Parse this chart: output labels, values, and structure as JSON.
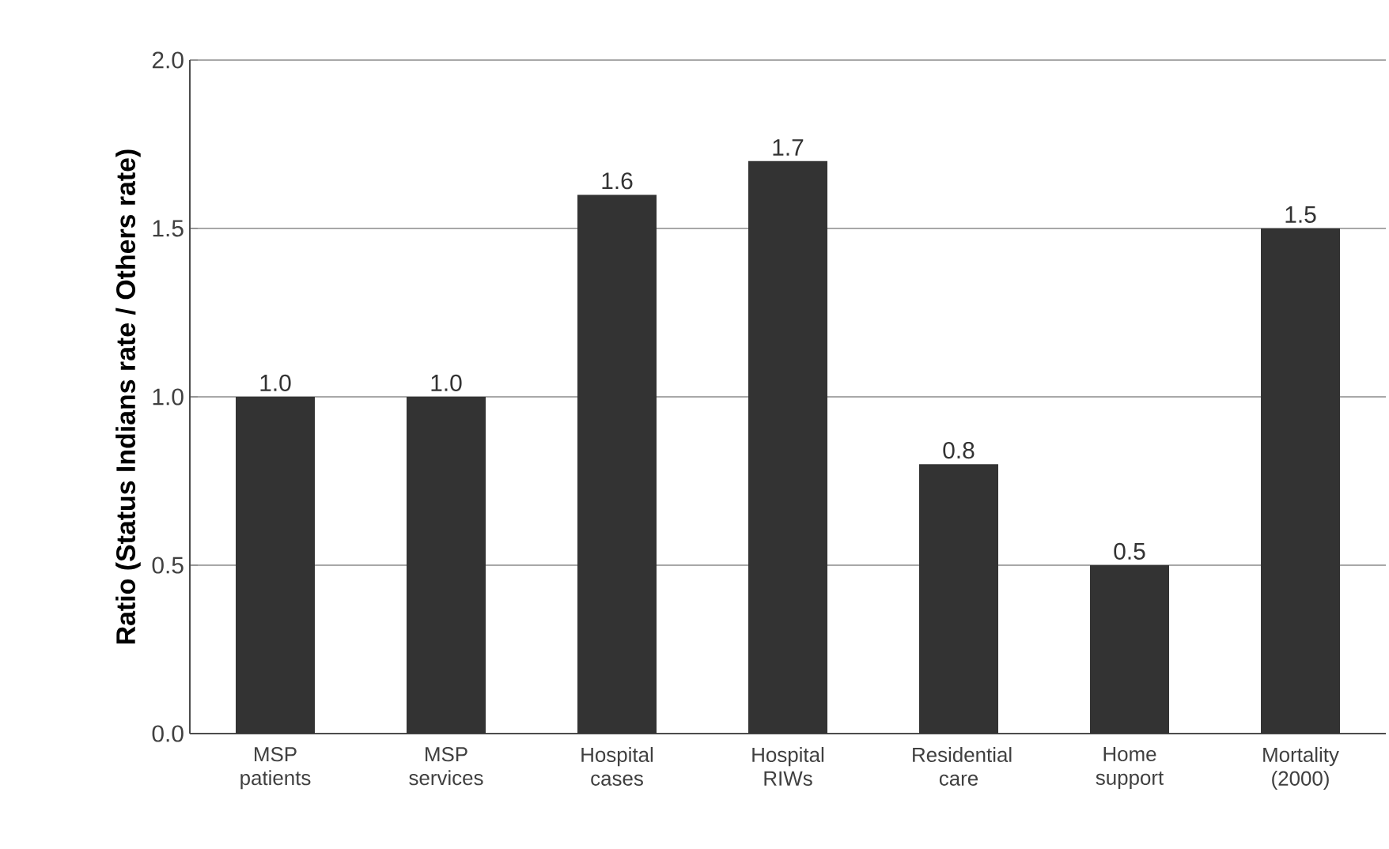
{
  "chart_data": {
    "type": "bar",
    "ylabel": "Ratio (Status Indians rate / Others rate)",
    "categories": [
      "MSP patients",
      "MSP services",
      "Hospital cases",
      "Hospital RIWs",
      "Residential care",
      "Home support",
      "Mortality (2000)"
    ],
    "values": [
      1.0,
      1.0,
      1.6,
      1.7,
      0.8,
      0.5,
      1.5
    ],
    "color": "#333333",
    "ylim": [
      0,
      2
    ],
    "yticks": [
      {
        "value": 0,
        "label": "0.0"
      },
      {
        "value": 0.5,
        "label": "0.5"
      },
      {
        "value": 1,
        "label": "1.0"
      },
      {
        "value": 1.5,
        "label": "1.5"
      },
      {
        "value": 2,
        "label": "2.0"
      }
    ],
    "value_labels": [
      "1.0",
      "1.0",
      "1.6",
      "1.7",
      "0.8",
      "0.5",
      "1.5"
    ],
    "grid": "y"
  }
}
